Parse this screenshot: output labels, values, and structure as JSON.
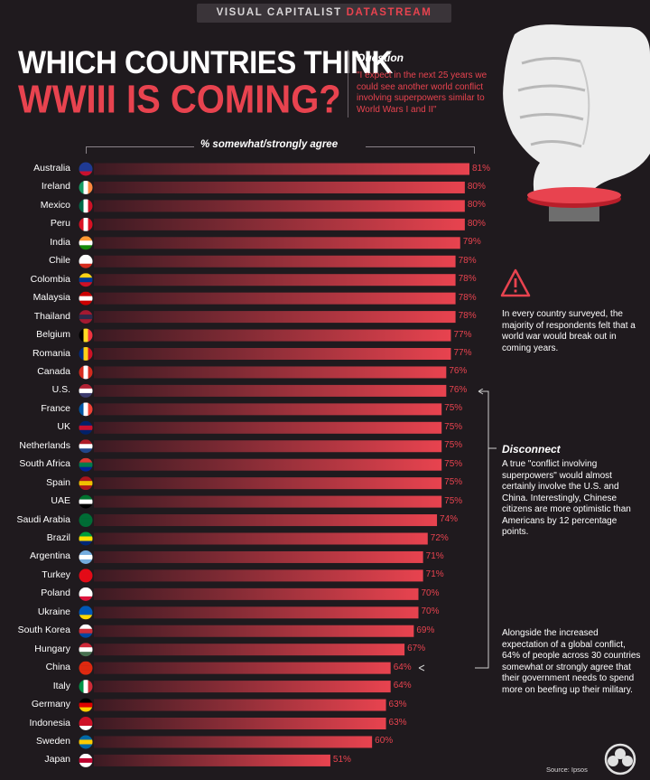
{
  "brand": {
    "prefix": "VISUAL CAPITALIST",
    "accent": "DATASTREAM"
  },
  "title": {
    "line1": "WHICH COUNTRIES THINK",
    "line2": "WWIII IS COMING?"
  },
  "question": {
    "heading": "Question",
    "text": "\"I expect in the next 25 years we could see another world conflict involving superpowers similar to World Wars I and II\""
  },
  "notes": {
    "note1": "In every country surveyed, the majority of respondents felt that a world war would break out in coming years.",
    "disconnect_heading": "Disconnect",
    "disconnect_text": "A true \"conflict involving superpowers\" would almost certainly involve the U.S. and China. Interestingly, Chinese citizens are more optimistic than Americans by 12 percentage points.",
    "note3": "Alongside the increased expectation of a global conflict, 64% of people across 30 countries somewhat or strongly agree that their government needs to spend more on beefing up their military."
  },
  "source": "Source: Ipsos",
  "colors": {
    "accent": "#e8434f",
    "background": "#1f1a1e",
    "bar_start": "#3a1a22",
    "bar_end": "#e8434f"
  },
  "chart_data": {
    "type": "bar",
    "orientation": "horizontal",
    "title": "% somewhat/strongly agree",
    "xlim": [
      0,
      81
    ],
    "categories": [
      "Australia",
      "Ireland",
      "Mexico",
      "Peru",
      "India",
      "Chile",
      "Colombia",
      "Malaysia",
      "Thailand",
      "Belgium",
      "Romania",
      "Canada",
      "U.S.",
      "France",
      "UK",
      "Netherlands",
      "South Africa",
      "Spain",
      "UAE",
      "Saudi Arabia",
      "Brazil",
      "Argentina",
      "Turkey",
      "Poland",
      "Ukraine",
      "South Korea",
      "Hungary",
      "China",
      "Italy",
      "Germany",
      "Indonesia",
      "Sweden",
      "Japan"
    ],
    "values": [
      81,
      80,
      80,
      80,
      79,
      78,
      78,
      78,
      78,
      77,
      77,
      76,
      76,
      75,
      75,
      75,
      75,
      75,
      75,
      74,
      72,
      71,
      71,
      70,
      70,
      69,
      67,
      64,
      64,
      63,
      63,
      60,
      51
    ],
    "value_labels": [
      "81%",
      "80%",
      "80%",
      "80%",
      "79%",
      "78%",
      "78%",
      "78%",
      "78%",
      "77%",
      "77%",
      "76%",
      "76%",
      "75%",
      "75%",
      "75%",
      "75%",
      "75%",
      "75%",
      "74%",
      "72%",
      "71%",
      "71%",
      "70%",
      "70%",
      "69%",
      "67%",
      "64%",
      "64%",
      "63%",
      "63%",
      "60%",
      "51%"
    ],
    "flags": [
      "australia-flag-icon",
      "ireland-flag-icon",
      "mexico-flag-icon",
      "peru-flag-icon",
      "india-flag-icon",
      "chile-flag-icon",
      "colombia-flag-icon",
      "malaysia-flag-icon",
      "thailand-flag-icon",
      "belgium-flag-icon",
      "romania-flag-icon",
      "canada-flag-icon",
      "us-flag-icon",
      "france-flag-icon",
      "uk-flag-icon",
      "netherlands-flag-icon",
      "south-africa-flag-icon",
      "spain-flag-icon",
      "uae-flag-icon",
      "saudi-arabia-flag-icon",
      "brazil-flag-icon",
      "argentina-flag-icon",
      "turkey-flag-icon",
      "poland-flag-icon",
      "ukraine-flag-icon",
      "south-korea-flag-icon",
      "hungary-flag-icon",
      "china-flag-icon",
      "italy-flag-icon",
      "germany-flag-icon",
      "indonesia-flag-icon",
      "sweden-flag-icon",
      "japan-flag-icon"
    ]
  }
}
